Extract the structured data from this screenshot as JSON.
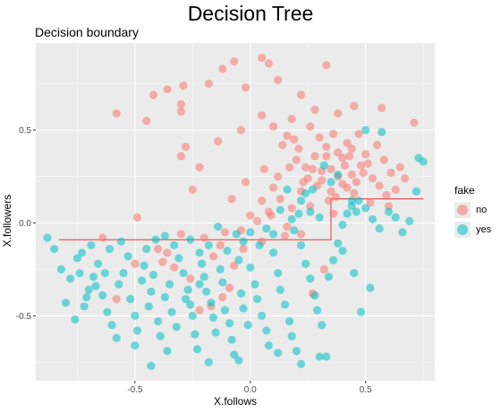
{
  "page": {
    "title": "Decision Tree"
  },
  "chart_data": {
    "type": "scatter",
    "title": "Decision boundary",
    "xlabel": "X.follows",
    "ylabel": "X.followers",
    "xlim": [
      -0.93,
      0.8
    ],
    "ylim": [
      -0.85,
      0.97
    ],
    "x_ticks": [
      -0.5,
      0.0,
      0.5
    ],
    "x_tick_labels": [
      "-0.5",
      "0.0",
      "0.5"
    ],
    "y_ticks": [
      -0.5,
      0.0,
      0.5
    ],
    "y_tick_labels": [
      "-0.5",
      "0.0",
      "0.5"
    ],
    "grid": true,
    "legend": {
      "title": "fake",
      "placement": "right"
    },
    "series": [
      {
        "name": "no",
        "color": "#F8766D",
        "points": [
          [
            -0.58,
            0.59
          ],
          [
            -0.42,
            0.69
          ],
          [
            -0.3,
            0.64
          ],
          [
            -0.29,
            0.74
          ],
          [
            -0.18,
            0.75
          ],
          [
            -0.12,
            0.83
          ],
          [
            -0.07,
            0.87
          ],
          [
            0.05,
            0.89
          ],
          [
            0.08,
            0.86
          ],
          [
            -0.02,
            0.73
          ],
          [
            0.12,
            0.77
          ],
          [
            0.22,
            0.69
          ],
          [
            0.33,
            0.85
          ],
          [
            -0.36,
            0.72
          ],
          [
            -0.45,
            0.55
          ],
          [
            -0.3,
            0.6
          ],
          [
            0.18,
            0.56
          ],
          [
            0.28,
            0.61
          ],
          [
            0.38,
            0.59
          ],
          [
            0.45,
            0.63
          ],
          [
            0.57,
            0.62
          ],
          [
            0.71,
            0.54
          ],
          [
            -0.28,
            0.41
          ],
          [
            -0.3,
            0.36
          ],
          [
            -0.22,
            0.3
          ],
          [
            -0.25,
            0.18
          ],
          [
            -0.14,
            0.44
          ],
          [
            -0.04,
            0.5
          ],
          [
            0.05,
            0.58
          ],
          [
            0.1,
            0.52
          ],
          [
            0.16,
            0.47
          ],
          [
            0.21,
            0.4
          ],
          [
            -0.49,
            0.03
          ],
          [
            -0.64,
            -0.08
          ],
          [
            -0.58,
            -0.41
          ],
          [
            -0.4,
            -0.14
          ],
          [
            -0.36,
            -0.16
          ],
          [
            -0.33,
            -0.24
          ],
          [
            -0.3,
            -0.06
          ],
          [
            -0.2,
            -0.08
          ],
          [
            -0.26,
            -0.3
          ],
          [
            -0.13,
            -0.12
          ],
          [
            -0.07,
            -0.23
          ],
          [
            -0.09,
            -0.35
          ],
          [
            -0.17,
            -0.45
          ],
          [
            -0.22,
            -0.47
          ],
          [
            -0.12,
            -0.4
          ],
          [
            -0.04,
            -0.04
          ],
          [
            0.0,
            0.04
          ],
          [
            0.05,
            -0.1
          ],
          [
            0.08,
            0.06
          ],
          [
            0.16,
            -0.02
          ],
          [
            0.22,
            -0.06
          ],
          [
            0.06,
            0.29
          ],
          [
            -0.08,
            0.13
          ],
          [
            -0.02,
            0.22
          ],
          [
            0.27,
            -0.38
          ],
          [
            0.13,
            0.13
          ],
          [
            0.23,
            0.22
          ],
          [
            0.24,
            0.3
          ],
          [
            0.31,
            0.28
          ],
          [
            0.34,
            0.12
          ],
          [
            0.4,
            0.21
          ],
          [
            0.45,
            0.16
          ],
          [
            0.52,
            0.11
          ],
          [
            0.59,
            0.15
          ],
          [
            0.63,
            0.18
          ],
          [
            0.67,
            0.24
          ],
          [
            0.42,
            0.43
          ],
          [
            0.48,
            0.31
          ],
          [
            0.5,
            0.37
          ],
          [
            0.55,
            0.42
          ],
          [
            0.65,
            0.3
          ],
          [
            0.38,
            0.25
          ],
          [
            0.33,
            0.36
          ],
          [
            0.29,
            0.2
          ],
          [
            0.26,
            0.09
          ],
          [
            0.35,
            0.29
          ],
          [
            0.41,
            0.31
          ],
          [
            0.44,
            0.26
          ],
          [
            0.38,
            0.38
          ],
          [
            0.3,
            0.46
          ],
          [
            0.26,
            0.52
          ],
          [
            0.36,
            0.48
          ],
          [
            0.47,
            0.48
          ],
          [
            0.58,
            0.34
          ],
          [
            0.61,
            0.27
          ],
          [
            0.22,
            0.17
          ],
          [
            0.17,
            0.3
          ],
          [
            0.12,
            0.25
          ],
          [
            0.1,
            0.19
          ],
          [
            0.18,
            0.08
          ],
          [
            0.09,
            0.04
          ],
          [
            0.15,
            -0.07
          ],
          [
            0.2,
            0.34
          ],
          [
            0.28,
            0.36
          ],
          [
            0.37,
            0.14
          ],
          [
            0.42,
            0.19
          ],
          [
            0.46,
            0.22
          ],
          [
            0.49,
            0.27
          ],
          [
            0.53,
            0.24
          ],
          [
            0.56,
            0.2
          ],
          [
            0.6,
            0.09
          ],
          [
            0.35,
            0.17
          ],
          [
            0.31,
            0.23
          ],
          [
            0.27,
            0.29
          ],
          [
            0.25,
            0.24
          ],
          [
            0.43,
            0.36
          ],
          [
            0.51,
            0.32
          ],
          [
            -0.38,
            -0.21
          ],
          [
            -0.16,
            -0.18
          ],
          [
            -0.11,
            -0.05
          ],
          [
            -0.5,
            -0.22
          ],
          [
            -0.03,
            -0.14
          ],
          [
            0.03,
            0.01
          ],
          [
            0.05,
            0.12
          ],
          [
            0.14,
            0.42
          ],
          [
            0.19,
            0.45
          ],
          [
            0.33,
            0.41
          ],
          [
            0.4,
            0.35
          ],
          [
            0.44,
            0.4
          ],
          [
            0.36,
            0.05
          ],
          [
            0.32,
            -0.25
          ]
        ]
      },
      {
        "name": "yes",
        "color": "#00BFC4",
        "points": [
          [
            -0.88,
            -0.08
          ],
          [
            -0.85,
            -0.14
          ],
          [
            -0.82,
            -0.25
          ],
          [
            -0.78,
            -0.3
          ],
          [
            -0.75,
            -0.19
          ],
          [
            -0.8,
            -0.43
          ],
          [
            -0.76,
            -0.52
          ],
          [
            -0.72,
            -0.45
          ],
          [
            -0.7,
            -0.36
          ],
          [
            -0.68,
            -0.29
          ],
          [
            -0.66,
            -0.22
          ],
          [
            -0.64,
            -0.39
          ],
          [
            -0.62,
            -0.48
          ],
          [
            -0.6,
            -0.55
          ],
          [
            -0.58,
            -0.62
          ],
          [
            -0.57,
            -0.33
          ],
          [
            -0.55,
            -0.27
          ],
          [
            -0.53,
            -0.18
          ],
          [
            -0.52,
            -0.41
          ],
          [
            -0.5,
            -0.5
          ],
          [
            -0.49,
            -0.58
          ],
          [
            -0.47,
            -0.31
          ],
          [
            -0.46,
            -0.23
          ],
          [
            -0.44,
            -0.45
          ],
          [
            -0.43,
            -0.37
          ],
          [
            -0.42,
            -0.28
          ],
          [
            -0.4,
            -0.53
          ],
          [
            -0.39,
            -0.61
          ],
          [
            -0.37,
            -0.4
          ],
          [
            -0.35,
            -0.33
          ],
          [
            -0.34,
            -0.48
          ],
          [
            -0.32,
            -0.56
          ],
          [
            -0.31,
            -0.19
          ],
          [
            -0.29,
            -0.27
          ],
          [
            -0.28,
            -0.41
          ],
          [
            -0.27,
            -0.36
          ],
          [
            -0.25,
            -0.5
          ],
          [
            -0.24,
            -0.6
          ],
          [
            -0.23,
            -0.68
          ],
          [
            -0.21,
            -0.22
          ],
          [
            -0.2,
            -0.29
          ],
          [
            -0.19,
            -0.37
          ],
          [
            -0.17,
            -0.43
          ],
          [
            -0.16,
            -0.51
          ],
          [
            -0.15,
            -0.59
          ],
          [
            -0.13,
            -0.25
          ],
          [
            -0.12,
            -0.32
          ],
          [
            -0.11,
            -0.47
          ],
          [
            -0.09,
            -0.54
          ],
          [
            -0.08,
            -0.63
          ],
          [
            -0.07,
            -0.71
          ],
          [
            -0.05,
            -0.2
          ],
          [
            -0.04,
            -0.38
          ],
          [
            -0.03,
            -0.46
          ],
          [
            -0.01,
            -0.55
          ],
          [
            0.0,
            -0.24
          ],
          [
            0.02,
            -0.33
          ],
          [
            0.03,
            -0.41
          ],
          [
            0.05,
            -0.5
          ],
          [
            0.07,
            -0.58
          ],
          [
            0.08,
            -0.66
          ],
          [
            0.1,
            -0.16
          ],
          [
            0.12,
            -0.27
          ],
          [
            0.13,
            -0.36
          ],
          [
            0.15,
            -0.44
          ],
          [
            0.17,
            -0.53
          ],
          [
            0.18,
            -0.61
          ],
          [
            0.2,
            -0.69
          ],
          [
            0.22,
            -0.12
          ],
          [
            0.24,
            -0.22
          ],
          [
            0.26,
            -0.3
          ],
          [
            0.28,
            -0.39
          ],
          [
            0.29,
            -0.47
          ],
          [
            0.31,
            -0.55
          ],
          [
            0.33,
            -0.72
          ],
          [
            0.34,
            -0.29
          ],
          [
            0.36,
            -0.2
          ],
          [
            0.38,
            -0.11
          ],
          [
            0.4,
            -0.01
          ],
          [
            0.42,
            0.05
          ],
          [
            0.44,
            0.09
          ],
          [
            0.47,
            0.12
          ],
          [
            0.5,
            0.08
          ],
          [
            0.53,
            0.02
          ],
          [
            0.56,
            -0.03
          ],
          [
            0.6,
            0.06
          ],
          [
            0.63,
            0.03
          ],
          [
            0.66,
            -0.05
          ],
          [
            0.69,
            0.01
          ],
          [
            0.72,
            0.17
          ],
          [
            0.75,
            0.33
          ],
          [
            0.73,
            0.35
          ],
          [
            0.48,
            -0.48
          ],
          [
            0.52,
            -0.35
          ],
          [
            0.45,
            -0.27
          ],
          [
            0.4,
            -0.15
          ],
          [
            0.3,
            0.03
          ],
          [
            0.26,
            0.06
          ],
          [
            0.22,
            0.12
          ],
          [
            0.19,
            -0.04
          ],
          [
            0.16,
            0.18
          ],
          [
            0.13,
            0.07
          ],
          [
            0.1,
            -0.06
          ],
          [
            0.07,
            -0.03
          ],
          [
            0.04,
            -0.12
          ],
          [
            0.0,
            -0.05
          ],
          [
            -0.03,
            -0.1
          ],
          [
            -0.06,
            -0.06
          ],
          [
            -0.1,
            -0.15
          ],
          [
            -0.14,
            -0.02
          ],
          [
            -0.18,
            -0.12
          ],
          [
            -0.22,
            -0.16
          ],
          [
            -0.26,
            -0.09
          ],
          [
            -0.33,
            -0.12
          ],
          [
            -0.37,
            -0.07
          ],
          [
            -0.41,
            -0.09
          ],
          [
            -0.45,
            -0.14
          ],
          [
            -0.56,
            -0.1
          ],
          [
            -0.61,
            -0.14
          ],
          [
            -0.69,
            -0.12
          ],
          [
            -0.73,
            -0.16
          ],
          [
            -0.43,
            -0.77
          ],
          [
            -0.18,
            -0.75
          ],
          [
            -0.05,
            -0.74
          ],
          [
            0.22,
            -0.76
          ],
          [
            0.3,
            -0.72
          ],
          [
            0.12,
            -0.7
          ],
          [
            -0.36,
            -0.69
          ],
          [
            -0.5,
            -0.66
          ],
          [
            0.5,
            0.5
          ],
          [
            0.57,
            0.49
          ],
          [
            0.38,
            0.26
          ],
          [
            0.32,
            0.31
          ],
          [
            0.27,
            0.18
          ],
          [
            0.24,
            0.16
          ],
          [
            0.35,
            0.22
          ],
          [
            0.44,
            0.12
          ],
          [
            0.46,
            0.06
          ],
          [
            0.21,
            0.05
          ],
          [
            0.18,
            0.02
          ],
          [
            -0.22,
            -0.33
          ],
          [
            -0.26,
            -0.44
          ],
          [
            -0.63,
            -0.27
          ],
          [
            -0.67,
            -0.34
          ],
          [
            -0.71,
            -0.4
          ],
          [
            -0.74,
            -0.27
          ]
        ]
      }
    ],
    "boundary": [
      [
        -0.83,
        -0.09
      ],
      [
        0.35,
        -0.09
      ],
      [
        0.35,
        0.13
      ],
      [
        0.75,
        0.13
      ]
    ],
    "boundary_color": "#e8373a"
  }
}
